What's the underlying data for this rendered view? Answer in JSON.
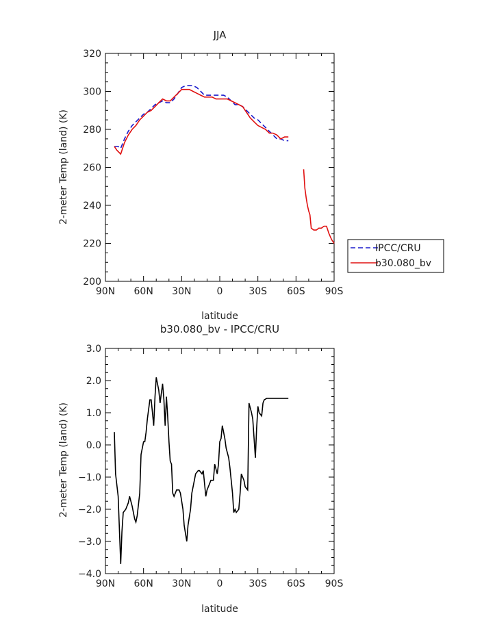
{
  "chart_data": [
    {
      "type": "line",
      "title": "JJA",
      "xlabel": "latitude",
      "ylabel": "2-meter Temp (land) (K)",
      "xlim": [
        90,
        -90
      ],
      "ylim": [
        200,
        320
      ],
      "xticks": [
        {
          "value": 90,
          "label": "90N"
        },
        {
          "value": 60,
          "label": "60N"
        },
        {
          "value": 30,
          "label": "30N"
        },
        {
          "value": 0,
          "label": "0"
        },
        {
          "value": -30,
          "label": "30S"
        },
        {
          "value": -60,
          "label": "60S"
        },
        {
          "value": -90,
          "label": "90S"
        }
      ],
      "yticks": [
        200,
        220,
        240,
        260,
        280,
        300,
        320
      ],
      "legend_position": "right",
      "series": [
        {
          "name": "IPCC/CRU",
          "color": "#1a1acc",
          "dash": true,
          "x": [
            83,
            80,
            78,
            75,
            72,
            69,
            66,
            63,
            60,
            57,
            54,
            51,
            48,
            45,
            42,
            39,
            36,
            33,
            30,
            27,
            24,
            21,
            18,
            15,
            12,
            9,
            6,
            3,
            0,
            -3,
            -6,
            -9,
            -12,
            -15,
            -18,
            -21,
            -24,
            -27,
            -30,
            -33,
            -36,
            -39,
            -42,
            -45,
            -48,
            -51,
            -54
          ],
          "y": [
            271,
            271,
            270,
            275,
            279,
            282,
            284,
            286,
            288,
            289,
            291,
            293,
            294,
            295,
            294,
            294,
            296,
            299,
            302,
            303,
            303,
            303,
            302,
            300,
            298,
            298,
            298,
            298,
            298,
            298,
            297,
            295,
            293,
            293,
            292,
            290,
            288,
            286,
            285,
            283,
            281,
            279,
            277,
            275,
            275,
            274,
            274
          ]
        },
        {
          "name": "b30.080_bv",
          "color": "#e01010",
          "dash": false,
          "x": [
            83,
            81,
            78,
            75,
            72,
            69,
            66,
            63,
            60,
            57,
            54,
            51,
            48,
            45,
            42,
            39,
            36,
            33,
            30,
            27,
            24,
            21,
            18,
            15,
            12,
            9,
            6,
            3,
            0,
            -3,
            -6,
            -9,
            -12,
            -15,
            -18,
            -21,
            -24,
            -27,
            -30,
            -33,
            -36,
            -39,
            -42,
            -45,
            -48,
            -51,
            -54
          ],
          "y": [
            271,
            269,
            267,
            273,
            277,
            280,
            282,
            285,
            287,
            289,
            290,
            292,
            294,
            296,
            295,
            295,
            297,
            299,
            301,
            301,
            301,
            300,
            299,
            298,
            297,
            297,
            297,
            296,
            296,
            296,
            296,
            295,
            294,
            293,
            292,
            289,
            286,
            284,
            282,
            281,
            280,
            278,
            278,
            277,
            275,
            276,
            276
          ]
        },
        {
          "name": "b30.080_bv",
          "color": "#e01010",
          "dash": false,
          "legend": false,
          "x": [
            -66,
            -67,
            -68,
            -69,
            -70,
            -71,
            -72,
            -74,
            -76,
            -78,
            -80,
            -82,
            -84,
            -86,
            -88,
            -90
          ],
          "y": [
            259,
            249,
            244,
            240,
            237,
            235,
            228,
            227,
            227,
            228,
            228,
            229,
            229,
            225,
            222,
            220
          ]
        }
      ]
    },
    {
      "type": "line",
      "title": "b30.080_bv - IPCC/CRU",
      "xlabel": "latitude",
      "ylabel": "2-meter Temp (land) (K)",
      "xlim": [
        90,
        -90
      ],
      "ylim": [
        -4.0,
        3.0
      ],
      "xticks": [
        {
          "value": 90,
          "label": "90N"
        },
        {
          "value": 60,
          "label": "60N"
        },
        {
          "value": 30,
          "label": "30N"
        },
        {
          "value": 0,
          "label": "0"
        },
        {
          "value": -30,
          "label": "30S"
        },
        {
          "value": -60,
          "label": "60S"
        },
        {
          "value": -90,
          "label": "90S"
        }
      ],
      "yticks": [
        {
          "value": -4.0,
          "label": "−4.0"
        },
        {
          "value": -3.0,
          "label": "−3.0"
        },
        {
          "value": -2.0,
          "label": "−2.0"
        },
        {
          "value": -1.0,
          "label": "−1.0"
        },
        {
          "value": 0.0,
          "label": "0.0"
        },
        {
          "value": 1.0,
          "label": "1.0"
        },
        {
          "value": 2.0,
          "label": "2.0"
        },
        {
          "value": 3.0,
          "label": "3.0"
        }
      ],
      "series": [
        {
          "color": "#000000",
          "dash": false,
          "x": [
            83,
            82,
            80,
            78,
            77,
            76,
            74,
            72,
            71,
            69,
            67,
            66,
            65,
            63,
            62,
            60,
            59,
            58,
            57,
            55,
            54,
            53,
            52,
            51,
            50,
            48,
            47,
            45,
            44,
            43,
            42,
            41,
            40,
            39,
            38,
            37,
            36,
            35,
            34,
            32,
            31,
            29,
            28,
            26,
            25,
            23,
            22,
            20,
            19,
            17,
            16,
            14,
            13,
            11,
            10,
            8,
            7,
            5,
            4,
            2,
            1,
            0,
            -1,
            -2,
            -4,
            -5,
            -7,
            -8,
            -9,
            -10,
            -11,
            -12,
            -13,
            -15,
            -16,
            -17,
            -19,
            -20,
            -22,
            -23,
            -25,
            -26,
            -28,
            -29,
            -30,
            -31,
            -33,
            -34,
            -35,
            -37,
            -38,
            -39,
            -40,
            -41,
            -42,
            -44,
            -46,
            -48,
            -50,
            -51,
            -52,
            -54
          ],
          "y": [
            0.4,
            -0.9,
            -1.6,
            -3.7,
            -2.7,
            -2.1,
            -2.0,
            -1.8,
            -1.6,
            -1.9,
            -2.3,
            -2.4,
            -2.2,
            -1.5,
            -0.3,
            0.1,
            0.1,
            0.4,
            0.8,
            1.4,
            1.4,
            1.0,
            0.6,
            1.5,
            2.1,
            1.7,
            1.3,
            1.9,
            1.4,
            0.6,
            1.5,
            0.9,
            0.1,
            -0.5,
            -0.6,
            -1.5,
            -1.6,
            -1.5,
            -1.4,
            -1.4,
            -1.5,
            -2.0,
            -2.5,
            -3.0,
            -2.5,
            -2.0,
            -1.5,
            -1.1,
            -0.9,
            -0.8,
            -0.8,
            -0.9,
            -0.8,
            -1.6,
            -1.4,
            -1.2,
            -1.1,
            -1.1,
            -0.6,
            -0.9,
            -0.6,
            0.1,
            0.2,
            0.6,
            0.2,
            -0.1,
            -0.4,
            -0.7,
            -1.1,
            -1.5,
            -2.1,
            -2.0,
            -2.1,
            -2.0,
            -1.5,
            -0.9,
            -1.1,
            -1.3,
            -1.4,
            1.3,
            1.0,
            0.8,
            -0.4,
            0.5,
            1.2,
            1.0,
            0.9,
            1.3,
            1.4,
            1.45,
            1.45,
            1.45,
            1.45,
            1.45,
            1.45,
            1.45,
            1.45,
            1.45,
            1.45,
            1.45,
            1.45,
            1.45
          ]
        }
      ]
    }
  ]
}
